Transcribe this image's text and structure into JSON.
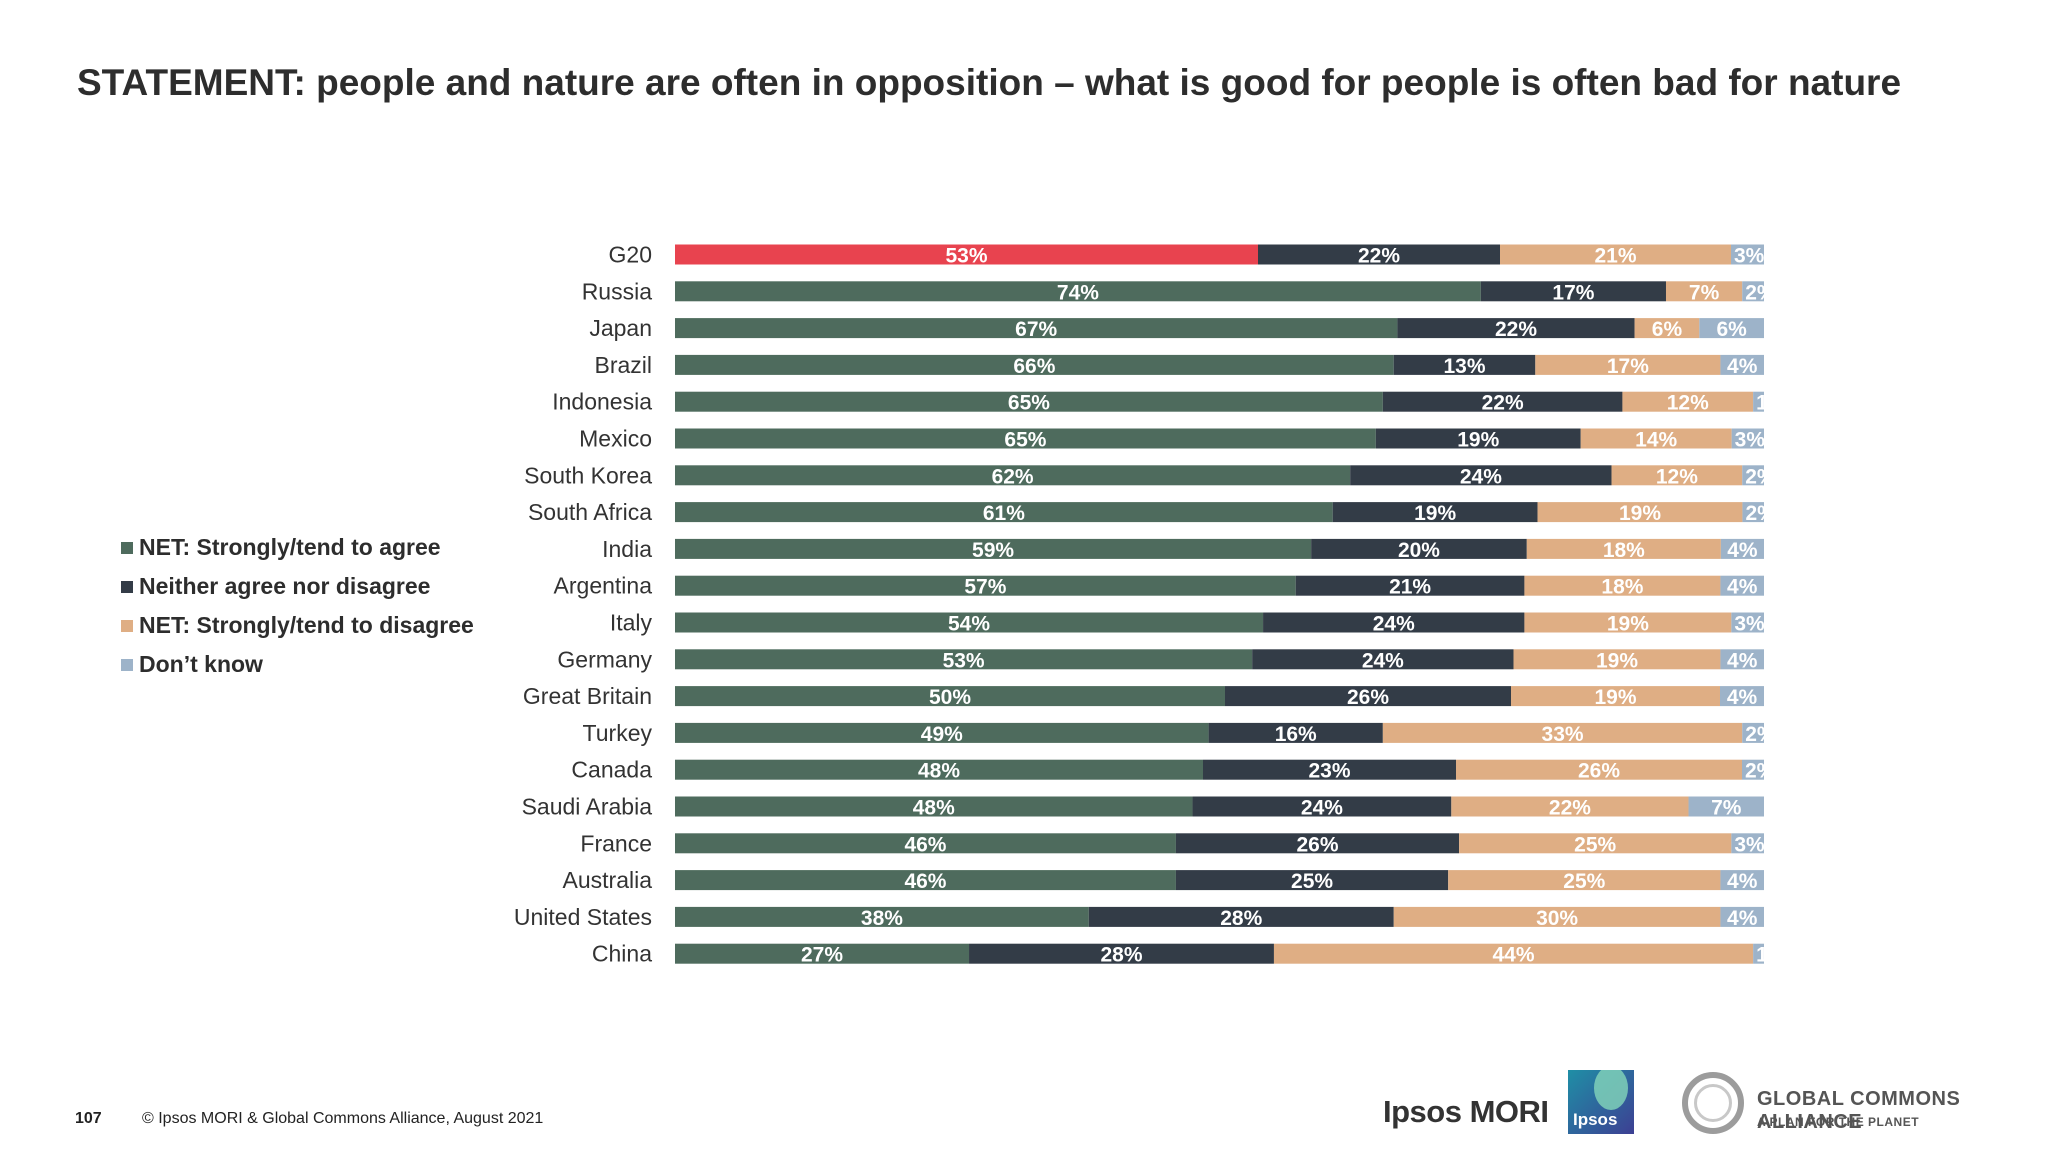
{
  "title": "STATEMENT: people and nature are often in opposition – what is good for people is often bad for nature",
  "footer": {
    "page_number": "107",
    "copyright": "© Ipsos MORI & Global Commons Alliance, August 2021"
  },
  "logos": {
    "ipsos_mori": "Ipsos MORI",
    "ipsos_box": "Ipsos",
    "gca_name": "GLOBAL COMMONS ALLIANCE",
    "gca_tagline": "A PLAN FOR THE PLANET"
  },
  "colors": {
    "agree": "#4e6b5d",
    "agree_highlight": "#e8434f",
    "neither": "#333c47",
    "disagree": "#dfae84",
    "dont_know": "#9db3c9"
  },
  "chart_data": {
    "type": "bar",
    "orientation": "horizontal",
    "stacked": true,
    "percent_stacked": true,
    "legend_position": "left",
    "grid": false,
    "categories": [
      "G20",
      "Russia",
      "Japan",
      "Brazil",
      "Indonesia",
      "Mexico",
      "South Korea",
      "South Africa",
      "India",
      "Argentina",
      "Italy",
      "Germany",
      "Great Britain",
      "Turkey",
      "Canada",
      "Saudi Arabia",
      "France",
      "Australia",
      "United States",
      "China"
    ],
    "series": [
      {
        "name": "NET: Strongly/tend to agree",
        "values": [
          53,
          74,
          67,
          66,
          65,
          65,
          62,
          61,
          59,
          57,
          54,
          53,
          50,
          49,
          48,
          48,
          46,
          46,
          38,
          27
        ]
      },
      {
        "name": "Neither agree nor disagree",
        "values": [
          22,
          17,
          22,
          13,
          22,
          19,
          24,
          19,
          20,
          21,
          24,
          24,
          26,
          16,
          23,
          24,
          26,
          25,
          28,
          28
        ]
      },
      {
        "name": "NET: Strongly/tend to disagree",
        "values": [
          21,
          7,
          6,
          17,
          12,
          14,
          12,
          19,
          18,
          18,
          19,
          19,
          19,
          33,
          26,
          22,
          25,
          25,
          30,
          44
        ]
      },
      {
        "name": "Don’t know",
        "values": [
          3,
          2,
          6,
          4,
          1,
          3,
          2,
          2,
          4,
          4,
          3,
          4,
          4,
          2,
          2,
          7,
          3,
          4,
          4,
          1
        ]
      }
    ],
    "value_suffix": "%",
    "highlight_category": "G20"
  }
}
